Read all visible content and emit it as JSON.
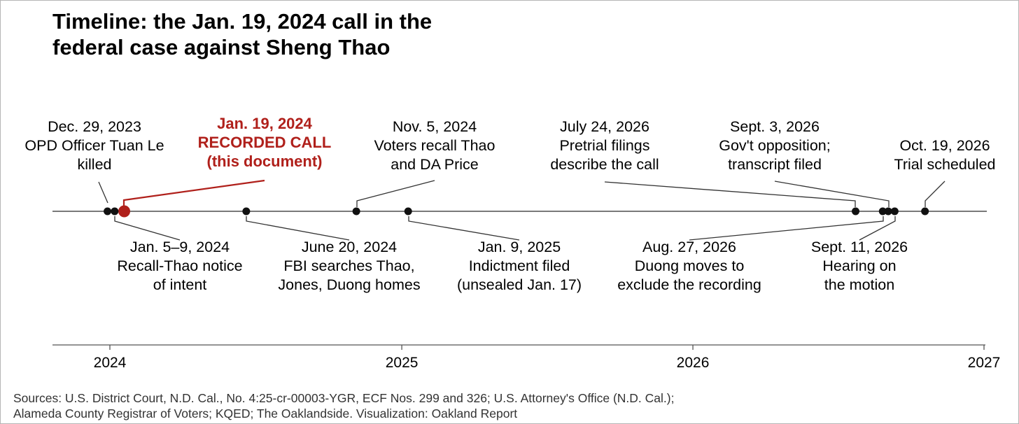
{
  "title_lines": [
    "Timeline: the Jan. 19, 2024 call in the",
    "federal case against Sheng Thao"
  ],
  "sources_lines": [
    "Sources: U.S. District Court, N.D. Cal., No. 4:25-cr-00003-YGR, ECF Nos. 299 and 326; U.S. Attorney's Office (N.D. Cal.);",
    "Alameda County Registrar of Voters; KQED; The Oaklandside. Visualization: Oakland Report"
  ],
  "colors": {
    "event": "#111111",
    "highlight": "#b0201b",
    "leader": "#333333",
    "axis": "#555555",
    "text": "#000000"
  },
  "chart_data": {
    "type": "timeline",
    "x_axis": {
      "range": [
        "2023-10-23",
        "2027-01-01"
      ],
      "ticks": [
        {
          "date": "2024-01-01",
          "label": "2024"
        },
        {
          "date": "2025-01-01",
          "label": "2025"
        },
        {
          "date": "2026-01-01",
          "label": "2026"
        },
        {
          "date": "2027-01-01",
          "label": "2027"
        }
      ]
    },
    "events": [
      {
        "date": "2023-12-29",
        "side": "above",
        "highlight": false,
        "lines": [
          "Dec. 29, 2023",
          "OPD Officer Tuan Le",
          "killed"
        ]
      },
      {
        "date": "2024-01-19",
        "side": "above",
        "highlight": true,
        "lines": [
          "Jan. 19, 2024",
          "RECORDED CALL",
          "(this document)"
        ]
      },
      {
        "date": "2024-11-05",
        "side": "above",
        "highlight": false,
        "lines": [
          "Nov. 5, 2024",
          "Voters recall Thao",
          "and DA Price"
        ]
      },
      {
        "date": "2026-07-24",
        "side": "above",
        "highlight": false,
        "lines": [
          "July 24, 2026",
          "Pretrial filings",
          "describe the call"
        ]
      },
      {
        "date": "2026-09-03",
        "side": "above",
        "highlight": false,
        "lines": [
          "Sept. 3, 2026",
          "Gov't opposition;",
          "transcript filed"
        ]
      },
      {
        "date": "2026-10-19",
        "side": "above",
        "highlight": false,
        "lines": [
          "Oct. 19, 2026",
          "Trial scheduled"
        ]
      },
      {
        "date": "2024-01-07",
        "side": "below",
        "highlight": false,
        "lines": [
          "Jan. 5–9, 2024",
          "Recall-Thao notice",
          "of intent"
        ]
      },
      {
        "date": "2024-06-20",
        "side": "below",
        "highlight": false,
        "lines": [
          "June 20, 2024",
          "FBI searches Thao,",
          "Jones, Duong homes"
        ]
      },
      {
        "date": "2025-01-09",
        "side": "below",
        "highlight": false,
        "lines": [
          "Jan. 9, 2025",
          "Indictment filed",
          "(unsealed Jan. 17)"
        ]
      },
      {
        "date": "2026-08-27",
        "side": "below",
        "highlight": false,
        "lines": [
          "Aug. 27, 2026",
          "Duong moves to",
          "exclude the recording"
        ]
      },
      {
        "date": "2026-09-11",
        "side": "below",
        "highlight": false,
        "lines": [
          "Sept. 11, 2026",
          "Hearing on",
          "the motion"
        ]
      }
    ]
  }
}
